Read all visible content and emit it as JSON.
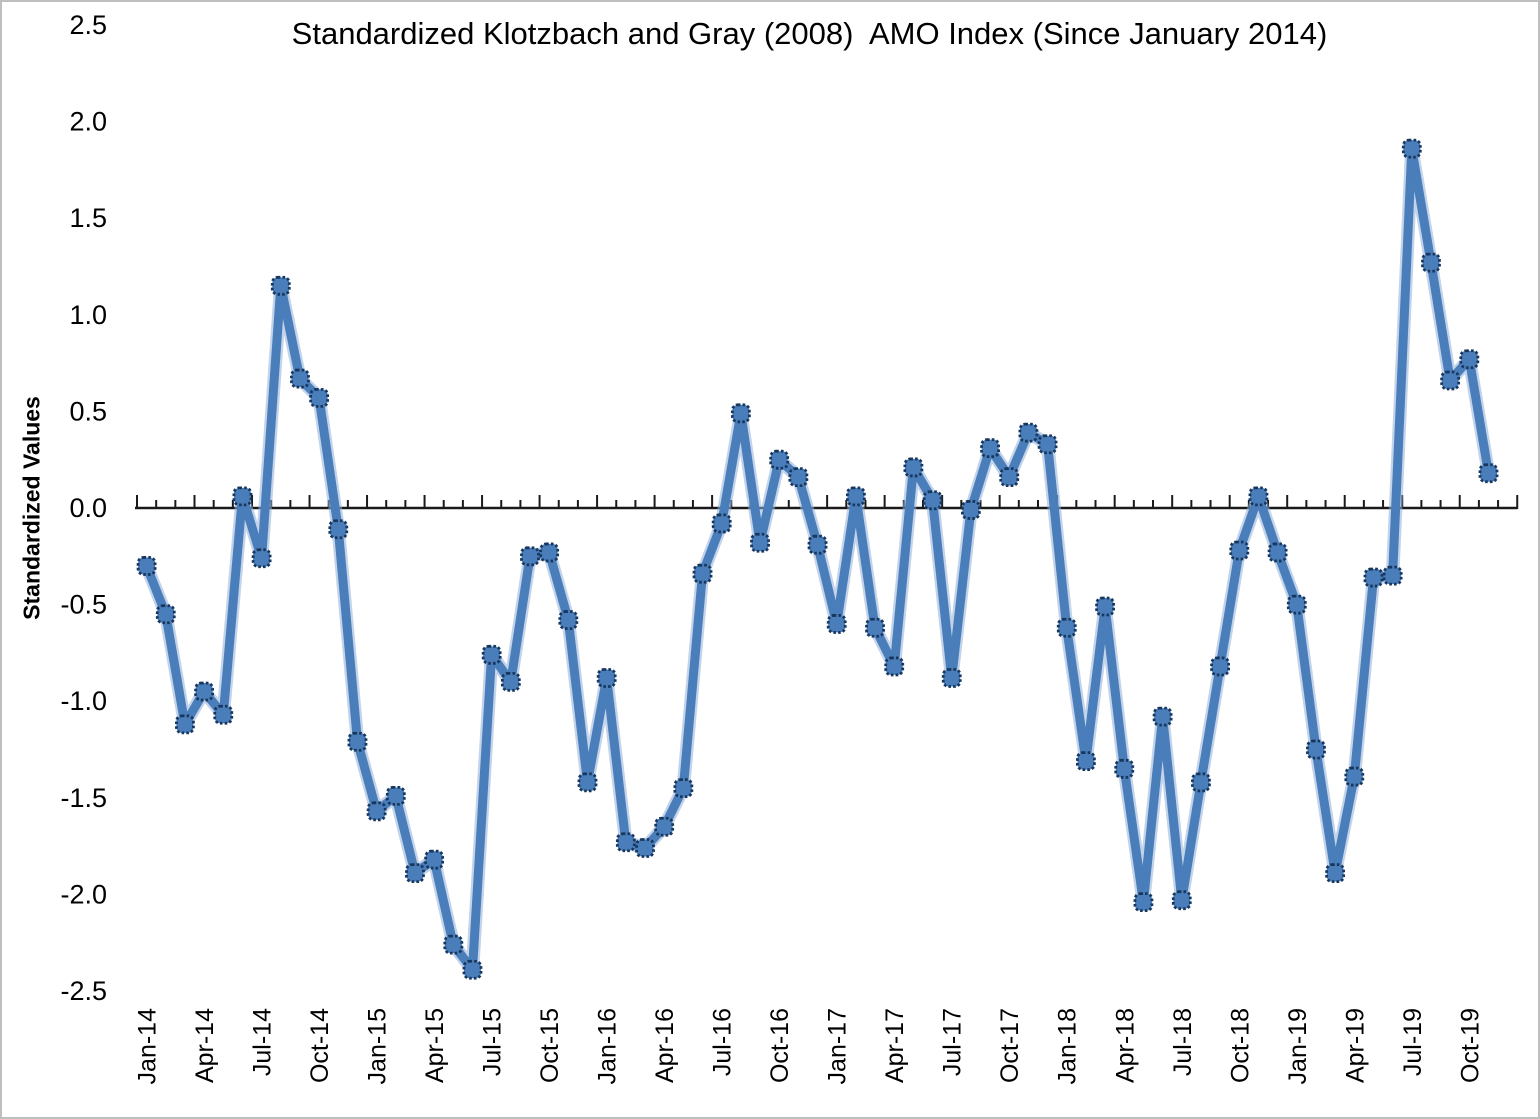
{
  "window": {
    "background_color": "#FFFFFF",
    "frame_border_color": "#BFBFBF"
  },
  "chart_data": {
    "type": "line",
    "title": "Standardized Klotzbach and Gray (2008)  AMO Index (Since January 2014)",
    "ylabel": "Standardized Values",
    "xlabel": "",
    "ylim": [
      -2.5,
      2.5
    ],
    "ytick_step": 0.5,
    "ytick_labels": [
      "2.5",
      "2.0",
      "1.5",
      "1.0",
      "0.5",
      "0.0",
      "-0.5",
      "-1.0",
      "-1.5",
      "-2.0",
      "-2.5"
    ],
    "x_label_every_n_months": 3,
    "shown_x_labels": [
      "Jan-14",
      "Apr-14",
      "Jul-14",
      "Oct-14",
      "Jan-15",
      "Apr-15",
      "Jul-15",
      "Oct-15",
      "Jan-16",
      "Apr-16",
      "Jul-16",
      "Oct-16",
      "Jan-17",
      "Apr-17",
      "Jul-17",
      "Oct-17",
      "Jan-18",
      "Apr-18",
      "Jul-18",
      "Oct-18",
      "Jan-19",
      "Apr-19",
      "Jul-19",
      "Oct-19"
    ],
    "grid": false,
    "legend": "none",
    "x_axis_crosses_at": 0,
    "categories": [
      "Jan-14",
      "Feb-14",
      "Mar-14",
      "Apr-14",
      "May-14",
      "Jun-14",
      "Jul-14",
      "Aug-14",
      "Sep-14",
      "Oct-14",
      "Nov-14",
      "Dec-14",
      "Jan-15",
      "Feb-15",
      "Mar-15",
      "Apr-15",
      "May-15",
      "Jun-15",
      "Jul-15",
      "Aug-15",
      "Sep-15",
      "Oct-15",
      "Nov-15",
      "Dec-15",
      "Jan-16",
      "Feb-16",
      "Mar-16",
      "Apr-16",
      "May-16",
      "Jun-16",
      "Jul-16",
      "Aug-16",
      "Sep-16",
      "Oct-16",
      "Nov-16",
      "Dec-16",
      "Jan-17",
      "Feb-17",
      "Mar-17",
      "Apr-17",
      "May-17",
      "Jun-17",
      "Jul-17",
      "Aug-17",
      "Sep-17",
      "Oct-17",
      "Nov-17",
      "Dec-17",
      "Jan-18",
      "Feb-18",
      "Mar-18",
      "Apr-18",
      "May-18",
      "Jun-18",
      "Jul-18",
      "Aug-18",
      "Sep-18",
      "Oct-18",
      "Nov-18",
      "Dec-18",
      "Jan-19",
      "Feb-19",
      "Mar-19",
      "Apr-19",
      "May-19",
      "Jun-19",
      "Jul-19",
      "Aug-19",
      "Sep-19",
      "Oct-19",
      "Nov-19"
    ],
    "values": [
      -0.3,
      -0.55,
      -1.12,
      -0.95,
      -1.07,
      0.06,
      -0.26,
      1.15,
      0.67,
      0.57,
      -0.11,
      -1.21,
      -1.57,
      -1.49,
      -1.89,
      -1.82,
      -2.26,
      -2.39,
      -0.76,
      -0.9,
      -0.25,
      -0.23,
      -0.58,
      -1.42,
      -0.88,
      -1.73,
      -1.76,
      -1.65,
      -1.45,
      -0.34,
      -0.08,
      0.49,
      -0.18,
      0.25,
      0.16,
      -0.19,
      -0.6,
      0.06,
      -0.62,
      -0.82,
      0.21,
      0.04,
      -0.88,
      -0.01,
      0.31,
      0.16,
      0.39,
      0.33,
      -0.62,
      -1.31,
      -0.51,
      -1.35,
      -2.04,
      -1.08,
      -2.03,
      -1.42,
      -0.82,
      -0.22,
      0.06,
      -0.23,
      -0.5,
      -1.25,
      -1.89,
      -1.39,
      -0.36,
      -0.35,
      1.86,
      1.27,
      0.66,
      0.77,
      0.18
    ],
    "colors": {
      "line": "#4A7EBB",
      "line_halo": "#8FAFD9",
      "marker_fill": "#4A7EBB",
      "marker_border": "#17375E",
      "axis": "#1A1A1A",
      "text": "#000000"
    }
  }
}
